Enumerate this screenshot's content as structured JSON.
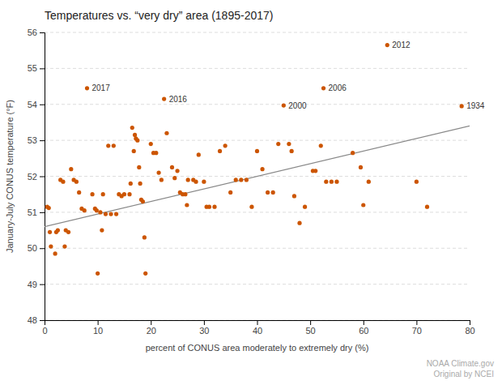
{
  "chart_data": {
    "type": "scatter",
    "title": "Temperatures vs. “very dry” area (1895-2017)",
    "x_label": "percent of CONUS area moderately to extremely dry (%)",
    "y_label": "January-July CONUS temperature (°F)",
    "xlim": [
      0,
      80
    ],
    "ylim": [
      48,
      56
    ],
    "xticks": [
      0,
      10,
      20,
      30,
      40,
      50,
      60,
      70,
      80
    ],
    "yticks": [
      48,
      49,
      50,
      51,
      52,
      53,
      54,
      55,
      56
    ],
    "grid": true,
    "series": [
      {
        "type": "scatter",
        "color": "#cc5500",
        "x": [
          0.5,
          0.8,
          1.0,
          1.2,
          2.0,
          2.2,
          2.5,
          3.0,
          3.5,
          3.8,
          4.0,
          4.5,
          5.0,
          5.5,
          6.0,
          6.5,
          7.0,
          7.5,
          9.0,
          9.5,
          9.8,
          10.0,
          10.5,
          10.8,
          11.0,
          11.5,
          12.0,
          12.5,
          13.0,
          13.5,
          14.0,
          14.5,
          15.0,
          16.0,
          16.2,
          16.5,
          16.8,
          17.0,
          17.2,
          17.5,
          17.8,
          18.0,
          18.2,
          18.5,
          18.8,
          19.0,
          20.0,
          20.5,
          21.0,
          21.5,
          22.0,
          23.0,
          24.0,
          24.5,
          25.0,
          25.5,
          26.0,
          26.5,
          26.8,
          27.0,
          28.0,
          28.5,
          29.0,
          30.0,
          30.5,
          31.0,
          32.0,
          33.0,
          34.0,
          35.0,
          36.0,
          37.0,
          38.0,
          39.0,
          40.0,
          41.0,
          42.0,
          43.0,
          44.0,
          46.0,
          46.5,
          47.0,
          48.0,
          49.0,
          50.5,
          51.0,
          52.0,
          53.0,
          54.0,
          55.0,
          58.0,
          59.5,
          60.0,
          61.0,
          70.0,
          72.0
        ],
        "values": [
          51.15,
          51.12,
          50.45,
          50.05,
          49.85,
          50.45,
          50.5,
          51.9,
          51.85,
          50.05,
          50.5,
          50.45,
          52.2,
          51.9,
          51.85,
          51.55,
          51.1,
          51.05,
          51.5,
          51.1,
          51.05,
          49.3,
          51.0,
          50.5,
          51.5,
          50.95,
          52.85,
          50.95,
          52.85,
          50.95,
          51.5,
          51.45,
          51.5,
          51.5,
          51.8,
          53.35,
          52.7,
          53.15,
          53.05,
          53.0,
          52.25,
          51.8,
          51.35,
          51.3,
          50.3,
          49.3,
          52.9,
          52.65,
          52.65,
          52.1,
          51.9,
          53.2,
          52.25,
          51.95,
          52.15,
          51.55,
          51.5,
          51.5,
          51.2,
          51.9,
          51.9,
          51.85,
          52.6,
          51.85,
          51.15,
          51.15,
          51.15,
          52.7,
          52.85,
          51.55,
          51.9,
          51.9,
          51.9,
          51.15,
          52.7,
          52.2,
          51.55,
          51.55,
          52.9,
          52.9,
          52.7,
          51.45,
          50.7,
          51.15,
          52.15,
          52.15,
          52.85,
          51.85,
          51.85,
          51.85,
          52.65,
          52.25,
          51.2,
          51.85,
          51.85,
          51.15
        ]
      },
      {
        "type": "scatter",
        "color": "#cc5500",
        "x": [
          64.5,
          8.0,
          22.5,
          52.5,
          45.0,
          78.5
        ],
        "values": [
          55.65,
          54.45,
          54.15,
          54.45,
          53.97,
          53.95
        ],
        "labels": [
          "2012",
          "2017",
          "2016",
          "2006",
          "2000",
          "1934"
        ]
      },
      {
        "type": "line",
        "color": "#888888",
        "x": [
          0,
          80
        ],
        "values": [
          50.6,
          53.4
        ]
      }
    ],
    "caption": [
      "NOAA Climate.gov",
      "Original by NCEI"
    ]
  }
}
